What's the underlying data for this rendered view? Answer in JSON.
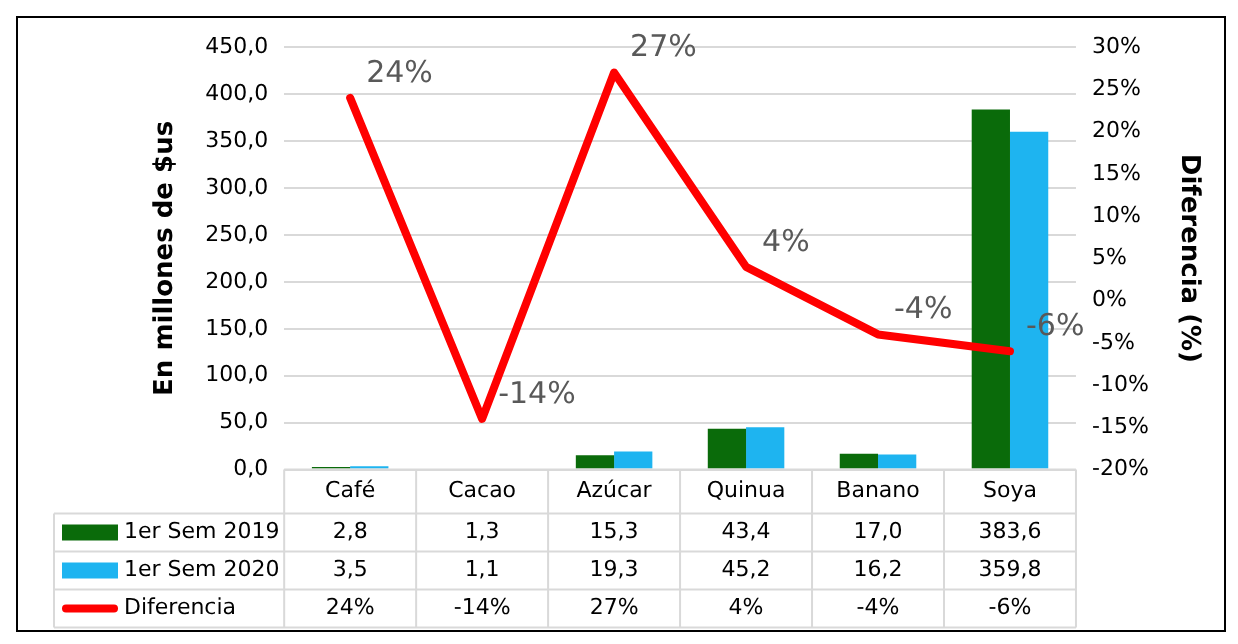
{
  "chart_data": {
    "type": "bar",
    "categories": [
      "Café",
      "Cacao",
      "Azúcar",
      "Quinua",
      "Banano",
      "Soya"
    ],
    "ylabel": "En millones de $us",
    "y2label": "Diferencia (%)",
    "series": [
      {
        "name": "1er Sem 2019",
        "color": "#0a6b0a",
        "values": [
          2.8,
          1.3,
          15.3,
          43.4,
          17.0,
          383.6
        ],
        "value_labels": [
          "2,8",
          "1,3",
          "15,3",
          "43,4",
          "17,0",
          "383,6"
        ]
      },
      {
        "name": "1er Sem 2020",
        "color": "#1eb4f0",
        "values": [
          3.5,
          1.1,
          19.3,
          45.2,
          16.2,
          359.8
        ],
        "value_labels": [
          "3,5",
          "1,1",
          "19,3",
          "45,2",
          "16,2",
          "359,8"
        ]
      },
      {
        "name": "Diferencia",
        "type": "line",
        "axis": "y2",
        "color": "#ff0000",
        "values": [
          24,
          -14,
          27,
          4,
          -4,
          -6
        ],
        "value_labels": [
          "24%",
          "-14%",
          "27%",
          "4%",
          "-4%",
          "-6%"
        ]
      }
    ],
    "ylim": [
      0,
      450
    ],
    "yticks": [
      {
        "value": 0,
        "label": "0,0"
      },
      {
        "value": 50,
        "label": "50,0"
      },
      {
        "value": 100,
        "label": "100,0"
      },
      {
        "value": 150,
        "label": "150,0"
      },
      {
        "value": 200,
        "label": "200,0"
      },
      {
        "value": 250,
        "label": "250,0"
      },
      {
        "value": 300,
        "label": "300,0"
      },
      {
        "value": 350,
        "label": "350,0"
      },
      {
        "value": 400,
        "label": "400,0"
      },
      {
        "value": 450,
        "label": "450,0"
      }
    ],
    "y2lim": [
      -20,
      30
    ],
    "y2ticks": [
      {
        "value": -20,
        "label": "-20%"
      },
      {
        "value": -15,
        "label": "-15%"
      },
      {
        "value": -10,
        "label": "-10%"
      },
      {
        "value": -5,
        "label": "-5%"
      },
      {
        "value": 0,
        "label": "0%"
      },
      {
        "value": 5,
        "label": "5%"
      },
      {
        "value": 10,
        "label": "10%"
      },
      {
        "value": 15,
        "label": "15%"
      },
      {
        "value": 20,
        "label": "20%"
      },
      {
        "value": 25,
        "label": "25%"
      },
      {
        "value": 30,
        "label": "30%"
      }
    ],
    "grid": "y",
    "legend": "bottom",
    "marker": "none",
    "line_style": "solid"
  }
}
